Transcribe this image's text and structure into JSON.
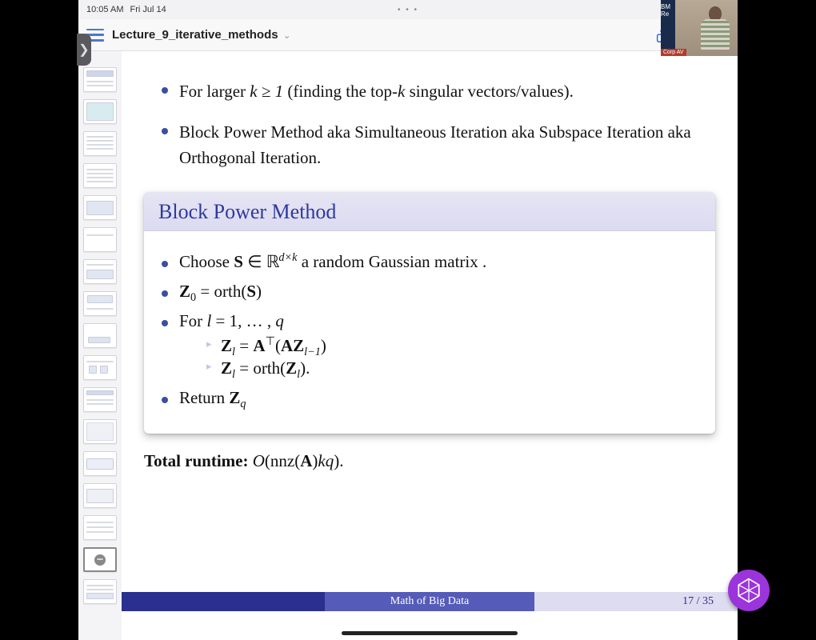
{
  "status": {
    "time": "10:05 AM",
    "date": "Fri Jul 14",
    "ellipsis": "• • •"
  },
  "doc": {
    "title": "Lecture_9_iterative_methods"
  },
  "webcam": {
    "stripe_text": "BM Re",
    "tag": "Corp AV"
  },
  "slide": {
    "intro_bullet_1_a": "For larger ",
    "intro_bullet_1_b": "k ≥ 1",
    "intro_bullet_1_c": " (finding the top-",
    "intro_bullet_1_d": "k",
    "intro_bullet_1_e": " singular vectors/values).",
    "intro_bullet_2": "Block Power Method aka Simultaneous Iteration aka Subspace Iteration aka Orthogonal Iteration.",
    "block_title": "Block Power Method",
    "step1_a": "Choose ",
    "step1_S": "S",
    "step1_in": " ∈ ",
    "step1_R": "ℝ",
    "step1_dk": "d×k",
    "step1_b": " a random Gaussian matrix .",
    "step2_Z0": "Z",
    "step2_sub0": "0",
    "step2_eq": " = orth(",
    "step2_S": "S",
    "step2_close": ")",
    "step3_a": "For ",
    "step3_l": "l",
    "step3_b": " = 1, … , ",
    "step3_q": "q",
    "sub1_Zl": "Z",
    "sub1_l": "l",
    "sub1_eq": " = ",
    "sub1_A": "A",
    "sub1_T": "⊤",
    "sub1_open": "(",
    "sub1_A2": "A",
    "sub1_Z": "Z",
    "sub1_lm1": "l−1",
    "sub1_close": ")",
    "sub2_Zl": "Z",
    "sub2_l": "l",
    "sub2_eq": " = orth(",
    "sub2_Z": "Z",
    "sub2_l2": "l",
    "sub2_close": ").",
    "step4_a": "Return ",
    "step4_Z": "Z",
    "step4_q": "q",
    "runtime_label": "Total runtime:",
    "runtime_a": " O",
    "runtime_b": "(nnz(",
    "runtime_A": "A",
    "runtime_c": ")",
    "runtime_kq": "kq",
    "runtime_d": ").",
    "footer_center": "Math of Big Data",
    "footer_page": "17 / 35"
  },
  "thumbs_count": 17,
  "selected_thumb": 15,
  "colors": {
    "bullet": "#3b4ea3",
    "block_title_fg": "#2e3a9e",
    "block_title_bg1": "#e6e5f3",
    "block_title_bg2": "#dcdaf0",
    "footer_dark": "#2b2f8f",
    "footer_mid": "#555bb8",
    "footer_light": "#dedcf0",
    "accent_blue": "#2a6ad8",
    "badge": "#9b34db",
    "rec_dot": "#ff3b30"
  }
}
